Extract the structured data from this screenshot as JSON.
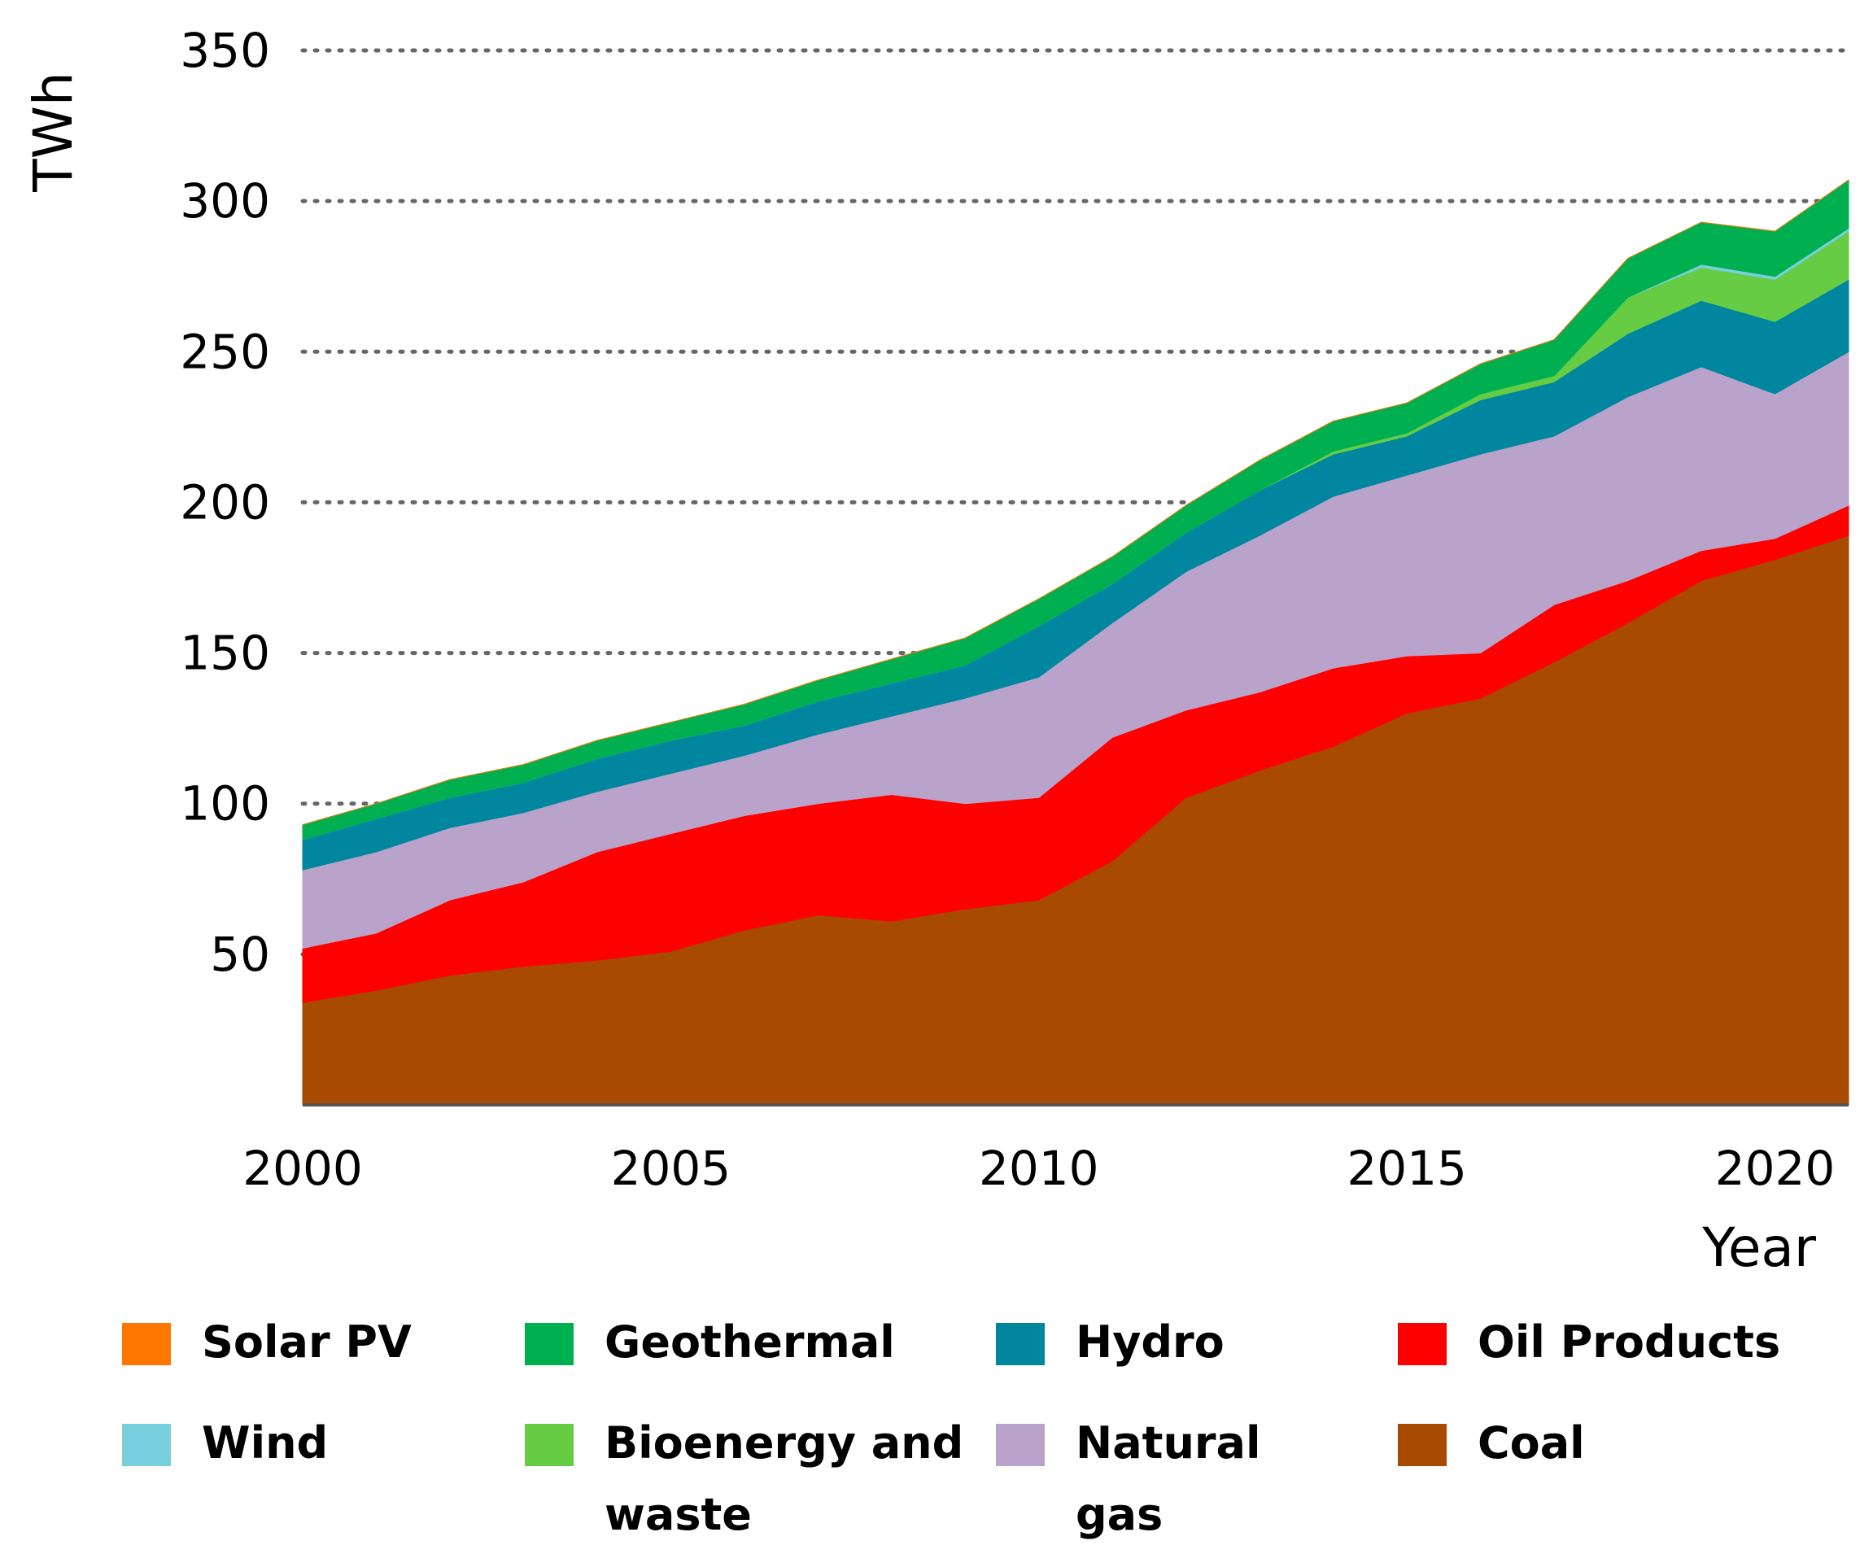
{
  "chart_data": {
    "type": "area",
    "stacked": true,
    "title": "",
    "xlabel": "Year",
    "ylabel": "TWh",
    "xlim": [
      2000,
      2021
    ],
    "ylim": [
      0,
      350
    ],
    "x_ticks": [
      2000,
      2005,
      2010,
      2015,
      2020
    ],
    "y_ticks": [
      50,
      100,
      150,
      200,
      250,
      300,
      350
    ],
    "grid": "horizontal dotted",
    "legend_position": "bottom",
    "x": [
      2000,
      2001,
      2002,
      2003,
      2004,
      2005,
      2006,
      2007,
      2008,
      2009,
      2010,
      2011,
      2012,
      2013,
      2014,
      2015,
      2016,
      2017,
      2018,
      2019,
      2020,
      2021
    ],
    "series": [
      {
        "name": "Coal",
        "color": "#A84A00",
        "values": [
          34,
          38,
          43,
          46,
          48,
          51,
          58,
          63,
          61,
          65,
          68,
          81,
          102,
          111,
          119,
          130,
          135,
          147,
          160,
          174,
          181,
          189
        ]
      },
      {
        "name": "Oil Products",
        "color": "#FF0000",
        "values": [
          18,
          19,
          25,
          28,
          36,
          39,
          38,
          37,
          42,
          35,
          34,
          41,
          29,
          26,
          26,
          19,
          15,
          19,
          14,
          10,
          7,
          10
        ]
      },
      {
        "name": "Natural gas",
        "color": "#B9A3CA",
        "values": [
          26,
          27,
          24,
          23,
          20,
          20,
          20,
          23,
          26,
          35,
          40,
          38,
          46,
          52,
          57,
          60,
          66,
          56,
          61,
          61,
          48,
          51
        ]
      },
      {
        "name": "Hydro",
        "color": "#00869E",
        "values": [
          10,
          11,
          10,
          10,
          11,
          11,
          10,
          11,
          11,
          11,
          17,
          13,
          13,
          15,
          14,
          13,
          18,
          18,
          21,
          22,
          24,
          24
        ]
      },
      {
        "name": "Bioenergy and waste",
        "color": "#66CC44",
        "values": [
          0,
          0,
          0,
          0,
          0,
          0,
          0,
          0,
          0,
          0,
          0,
          0,
          0,
          0,
          1,
          1,
          2,
          2,
          12,
          11,
          14,
          16
        ]
      },
      {
        "name": "Wind",
        "color": "#78CFDE",
        "values": [
          0,
          0,
          0,
          0,
          0,
          0,
          0,
          0,
          0,
          0,
          0,
          0,
          0,
          0,
          0,
          0,
          0,
          0,
          0,
          1,
          1,
          1
        ]
      },
      {
        "name": "Geothermal",
        "color": "#00B050",
        "values": [
          5,
          5,
          6,
          6,
          6,
          6,
          7,
          7,
          8,
          9,
          9,
          9,
          9,
          10,
          10,
          10,
          10,
          12,
          13,
          14,
          15,
          16
        ]
      },
      {
        "name": "Solar PV",
        "color": "#FF7700",
        "values": [
          0,
          0,
          0,
          0,
          0,
          0,
          0,
          0,
          0,
          0,
          0,
          0,
          0,
          0,
          0,
          0,
          0,
          0,
          0,
          0,
          0,
          0
        ]
      }
    ],
    "legend": [
      {
        "label": "Solar PV",
        "color": "#FF7700"
      },
      {
        "label": "Geothermal",
        "color": "#00B050"
      },
      {
        "label": "Hydro",
        "color": "#00869E"
      },
      {
        "label": "Oil Products",
        "color": "#FF0000"
      },
      {
        "label": "Wind",
        "color": "#78CFDE"
      },
      {
        "label": "Bioenergy and waste",
        "color": "#66CC44"
      },
      {
        "label": "Natural gas",
        "color": "#B9A3CA"
      },
      {
        "label": "Coal",
        "color": "#A84A00"
      }
    ]
  }
}
